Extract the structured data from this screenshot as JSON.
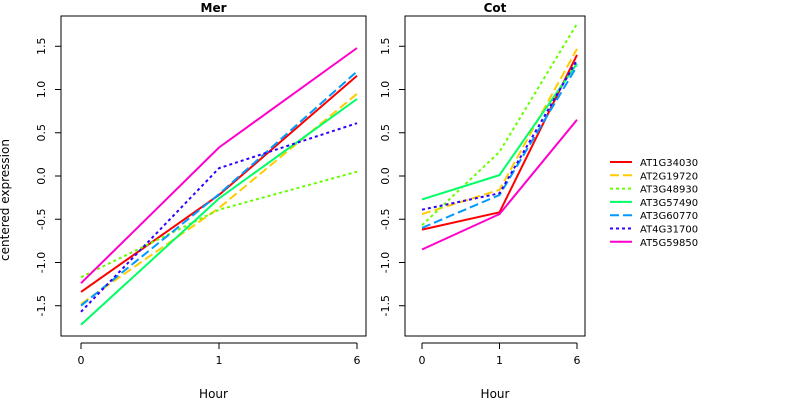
{
  "ylabel": "centered expression",
  "chart_data": [
    {
      "type": "line",
      "title": "Mer",
      "xlabel": "Hour",
      "ylabel": "centered expression",
      "categories": [
        "0",
        "1",
        "6"
      ],
      "ylim": [
        -1.85,
        1.85
      ],
      "yticks": [
        -1.5,
        -1.0,
        -0.5,
        0.0,
        0.5,
        1.0,
        1.5
      ],
      "series": [
        {
          "name": "AT1G34030",
          "color": "#ff0000",
          "dash": "solid",
          "values": [
            -1.34,
            -0.22,
            1.16
          ]
        },
        {
          "name": "AT2G19720",
          "color": "#ffcc00",
          "dash": "dashed",
          "values": [
            -1.48,
            -0.37,
            0.95
          ]
        },
        {
          "name": "AT3G48930",
          "color": "#66ff00",
          "dash": "dotted",
          "values": [
            -1.17,
            -0.39,
            0.05
          ]
        },
        {
          "name": "AT3G57490",
          "color": "#00ff66",
          "dash": "solid",
          "values": [
            -1.72,
            -0.26,
            0.89
          ]
        },
        {
          "name": "AT3G60770",
          "color": "#0099ff",
          "dash": "dashed",
          "values": [
            -1.5,
            -0.21,
            1.21
          ]
        },
        {
          "name": "AT4G31700",
          "color": "#3300ff",
          "dash": "dotted",
          "values": [
            -1.57,
            0.09,
            0.61
          ]
        },
        {
          "name": "AT5G59850",
          "color": "#ff00cc",
          "dash": "solid",
          "values": [
            -1.24,
            0.33,
            1.48
          ]
        }
      ]
    },
    {
      "type": "line",
      "title": "Cot",
      "xlabel": "Hour",
      "ylabel": "",
      "categories": [
        "0",
        "1",
        "6"
      ],
      "ylim": [
        -1.85,
        1.85
      ],
      "yticks": [
        -1.5,
        -1.0,
        -0.5,
        0.0,
        0.5,
        1.0,
        1.5
      ],
      "series": [
        {
          "name": "AT1G34030",
          "color": "#ff0000",
          "dash": "solid",
          "values": [
            -0.62,
            -0.42,
            1.4
          ]
        },
        {
          "name": "AT2G19720",
          "color": "#ffcc00",
          "dash": "dashed",
          "values": [
            -0.44,
            -0.16,
            1.47
          ]
        },
        {
          "name": "AT3G48930",
          "color": "#66ff00",
          "dash": "dotted",
          "values": [
            -0.57,
            0.28,
            1.76
          ]
        },
        {
          "name": "AT3G57490",
          "color": "#00ff66",
          "dash": "solid",
          "values": [
            -0.27,
            0.01,
            1.3
          ]
        },
        {
          "name": "AT3G60770",
          "color": "#0099ff",
          "dash": "dashed",
          "values": [
            -0.6,
            -0.22,
            1.27
          ]
        },
        {
          "name": "AT4G31700",
          "color": "#3300ff",
          "dash": "dotted",
          "values": [
            -0.39,
            -0.2,
            1.34
          ]
        },
        {
          "name": "AT5G59850",
          "color": "#ff00cc",
          "dash": "solid",
          "values": [
            -0.85,
            -0.44,
            0.65
          ]
        }
      ]
    }
  ]
}
